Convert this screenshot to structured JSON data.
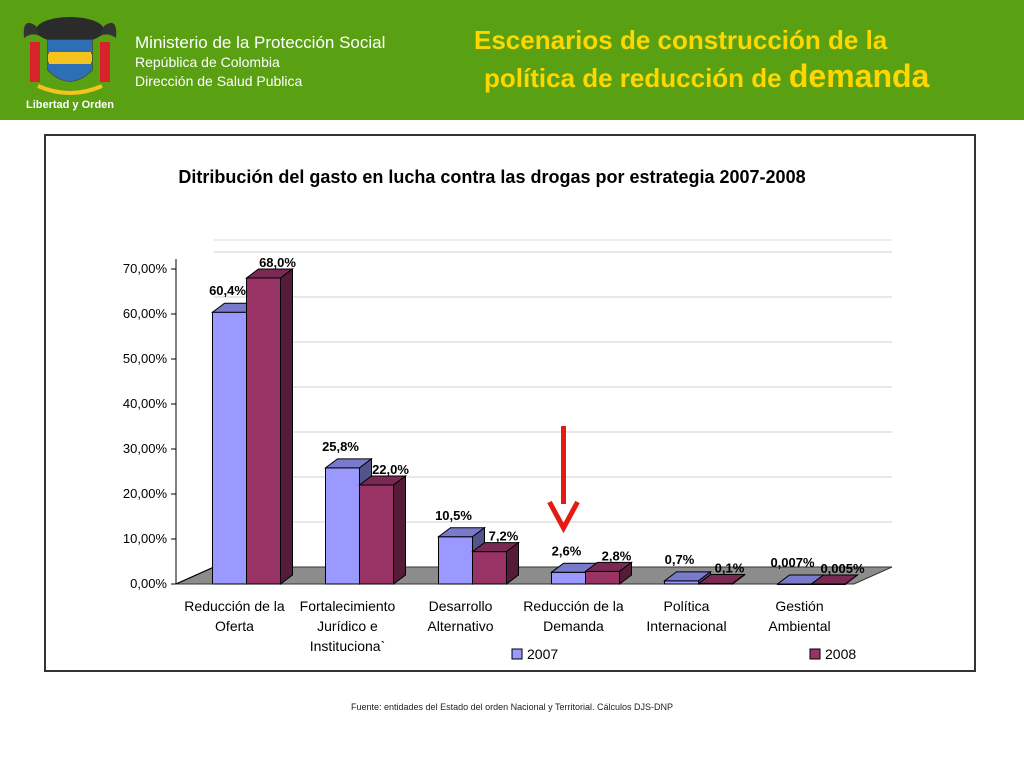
{
  "header": {
    "logo_text": "Libertad y Orden",
    "ministry": "Ministerio de la Protección Social",
    "country": "República de Colombia",
    "department": "Dirección de Salud Publica",
    "title_line1": "Escenarios de construcción  de la",
    "title_line2": "política de reducción de ",
    "title_emphasis": "demanda"
  },
  "chart_data": {
    "type": "bar",
    "title": "Ditribución del gasto en  lucha contra las drogas por estrategia 2007-2008",
    "categories": [
      [
        "Reducción de la",
        "Oferta"
      ],
      [
        "Fortalecimiento",
        "Jurídico e",
        "Instituciona`"
      ],
      [
        "Desarrollo",
        "Alternativo"
      ],
      [
        "Reducción de la",
        "Demanda"
      ],
      [
        "Política",
        "Internacional"
      ],
      [
        "Gestión",
        "Ambiental"
      ]
    ],
    "series": [
      {
        "name": "2007",
        "values": [
          60.4,
          25.8,
          10.5,
          2.6,
          0.7,
          0.007
        ],
        "labels": [
          "60,4%",
          "25,8%",
          "10,5%",
          "2,6%",
          "0,7%",
          "0,007%"
        ],
        "color": "#9999ff"
      },
      {
        "name": "2008",
        "values": [
          68.0,
          22.0,
          7.2,
          2.8,
          0.1,
          0.005
        ],
        "labels": [
          "68,0%",
          "22,0%",
          "7,2%",
          "2,8%",
          "0,1%",
          "0,005%"
        ],
        "color": "#993366"
      }
    ],
    "yticks": [
      "0,00%",
      "10,00%",
      "20,00%",
      "30,00%",
      "40,00%",
      "50,00%",
      "60,00%",
      "70,00%"
    ],
    "ylim": [
      0,
      70
    ],
    "grid": true,
    "legend": "bottom",
    "annotation": "red arrow pointing to Reducción de la Demanda"
  },
  "footer": {
    "source": "Fuente: entidades del Estado del orden Nacional  y Territorial. Cálculos DJS-DNP"
  }
}
